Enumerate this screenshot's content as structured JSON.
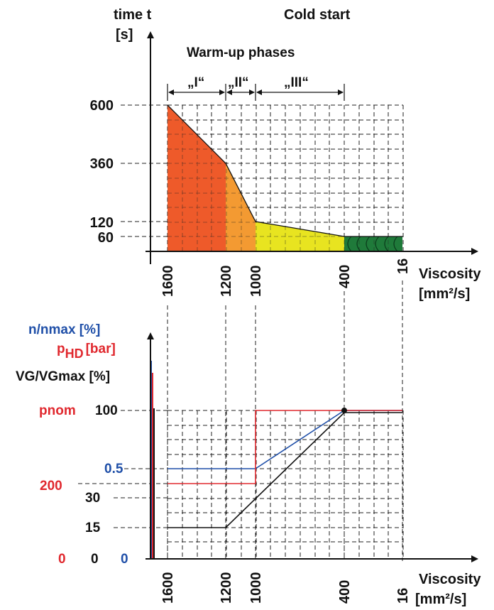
{
  "top": {
    "title": "Cold start",
    "y_axis_label_line1": "time t",
    "y_axis_label_line2": "[s]",
    "phases_title": "Warm-up phases",
    "phase_labels": [
      "„I“",
      "„II“",
      "„III“"
    ],
    "y_ticks": [
      "600",
      "360",
      "120",
      "60"
    ],
    "x_ticks": [
      "1600",
      "1200",
      "1000",
      "400",
      "16"
    ],
    "x_axis_label_line1": "Viscosity",
    "x_axis_label_line2": "[mm²/s]",
    "colors": {
      "phase1": "#ee5a2a",
      "phase2": "#f39a32",
      "phase3": "#e8e420",
      "operating": "#1f7a3a"
    }
  },
  "bottom": {
    "y_label_speed": "n/nmax [%]",
    "y_label_pressure_main": "p",
    "y_label_pressure_sub": "HD",
    "y_label_pressure_unit": "[bar]",
    "y_label_volume": "VG/VGmax [%]",
    "left_ticks": {
      "pnom": "pnom",
      "v100": "100",
      "v05": "0.5",
      "v200": "200",
      "v30": "30",
      "v15": "15",
      "zero_red": "0",
      "zero_black": "0",
      "zero_blue": "0"
    },
    "x_ticks": [
      "1600",
      "1200",
      "1000",
      "400",
      "16"
    ],
    "x_axis_label_line1": "Viscosity",
    "x_axis_label_line2": "[mm²/s]",
    "colors": {
      "speed": "#1f4fa8",
      "pressure": "#e0282e",
      "volume": "#111111"
    }
  }
}
